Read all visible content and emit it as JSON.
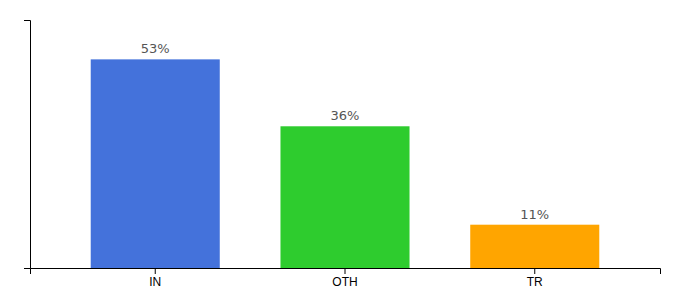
{
  "chart_data": {
    "type": "bar",
    "categories": [
      "IN",
      "OTH",
      "TR"
    ],
    "values": [
      53,
      36,
      11
    ],
    "value_labels": [
      "53%",
      "36%",
      "11%"
    ],
    "colors": [
      "#4472db",
      "#2ecc2e",
      "#ffa500"
    ],
    "ylim": [
      0,
      63
    ],
    "data_labels": true,
    "tick_labels": "x",
    "grid": false
  }
}
